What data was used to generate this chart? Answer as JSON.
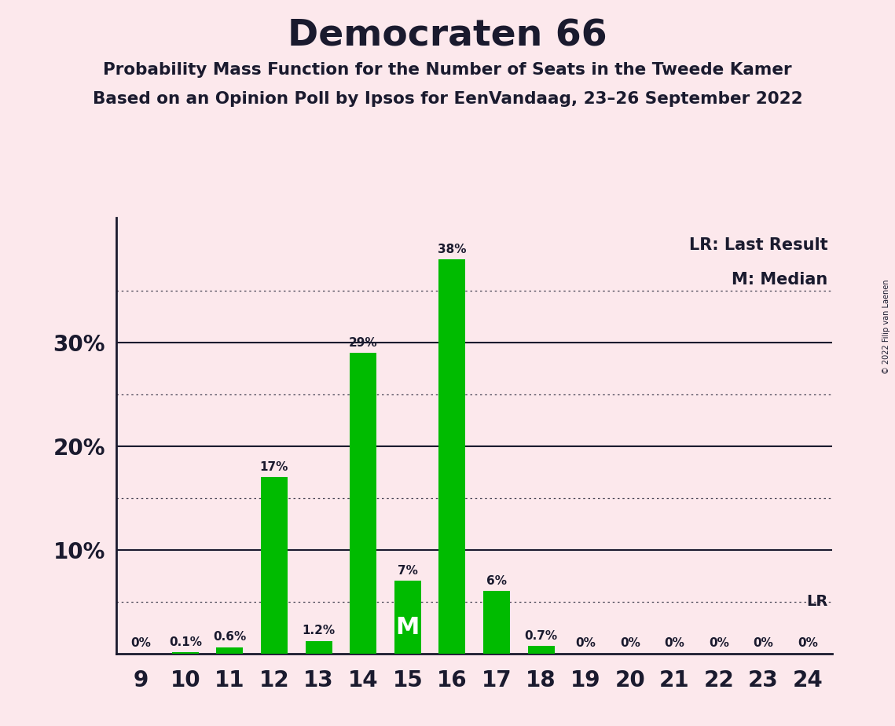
{
  "title": "Democraten 66",
  "subtitle1": "Probability Mass Function for the Number of Seats in the Tweede Kamer",
  "subtitle2": "Based on an Opinion Poll by Ipsos for EenVandaag, 23–26 September 2022",
  "copyright": "© 2022 Filip van Laenen",
  "legend_lr": "LR: Last Result",
  "legend_m": "M: Median",
  "seats": [
    9,
    10,
    11,
    12,
    13,
    14,
    15,
    16,
    17,
    18,
    19,
    20,
    21,
    22,
    23,
    24
  ],
  "probabilities": [
    0.0,
    0.1,
    0.6,
    17.0,
    1.2,
    29.0,
    7.0,
    38.0,
    6.0,
    0.7,
    0.0,
    0.0,
    0.0,
    0.0,
    0.0,
    0.0
  ],
  "labels": [
    "0%",
    "0.1%",
    "0.6%",
    "17%",
    "1.2%",
    "29%",
    "7%",
    "38%",
    "6%",
    "0.7%",
    "0%",
    "0%",
    "0%",
    "0%",
    "0%",
    "0%"
  ],
  "bar_color": "#00bb00",
  "background_color": "#fce8ec",
  "text_color": "#1a1a2e",
  "median_seat": 15,
  "lr_value": 5.0,
  "ylim": [
    0,
    42
  ],
  "dotted_lines": [
    5,
    15,
    25,
    35
  ],
  "solid_lines": [
    10,
    20,
    30
  ]
}
